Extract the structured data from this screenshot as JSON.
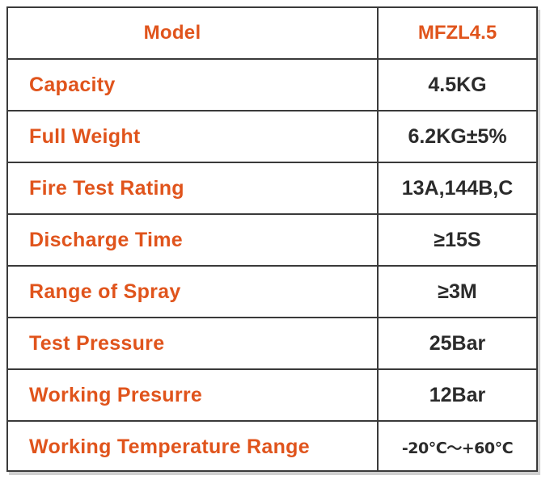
{
  "table": {
    "header": {
      "label": "Model",
      "value": "MFZL4.5"
    },
    "rows": [
      {
        "label": "Capacity",
        "value": "4.5KG"
      },
      {
        "label": "Full Weight",
        "value": "6.2KG±5%"
      },
      {
        "label": "Fire Test Rating",
        "value": "13A,144B,C"
      },
      {
        "label": "Discharge Time",
        "value": "≥15S"
      },
      {
        "label": "Range of Spray",
        "value": "≥3M"
      },
      {
        "label": "Test Pressure",
        "value": "25Bar"
      },
      {
        "label": "Working Presurre",
        "value": "12Bar"
      },
      {
        "label": "Working Temperature Range",
        "value": "-20℃～+60℃"
      }
    ]
  },
  "colors": {
    "label_text": "#e0541c",
    "value_text": "#2b2b2b",
    "border": "#3a3a3a"
  }
}
